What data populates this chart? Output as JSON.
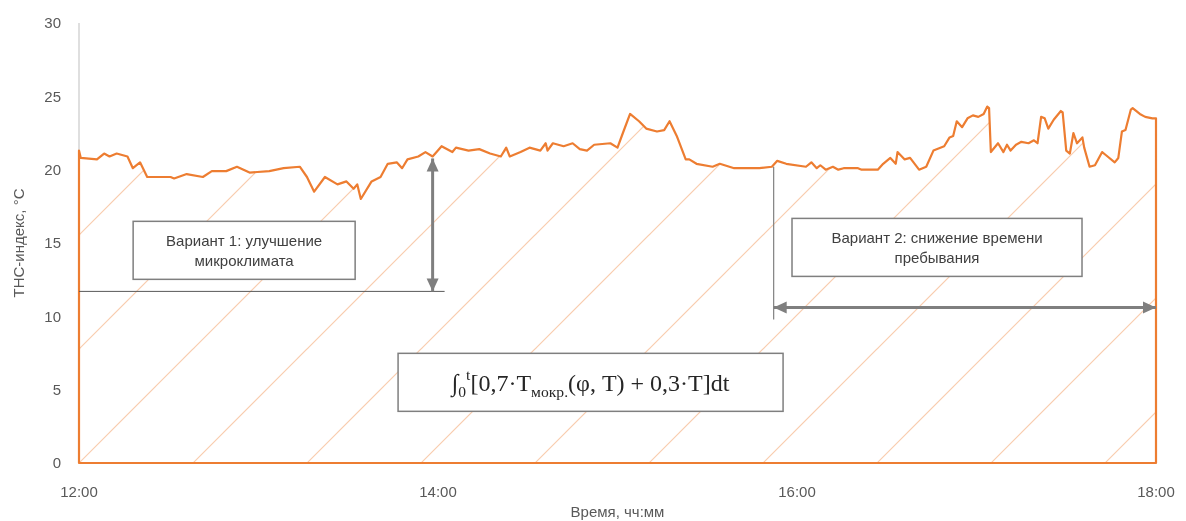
{
  "chart_data": {
    "type": "area",
    "xlabel": "Время, чч:мм",
    "ylabel": "ТНС-индекс, °C",
    "xlim": [
      12,
      18
    ],
    "ylim": [
      0,
      30
    ],
    "xticks": [
      {
        "value": 12,
        "label": "12:00"
      },
      {
        "value": 14,
        "label": "14:00"
      },
      {
        "value": 16,
        "label": "16:00"
      },
      {
        "value": 18,
        "label": "18:00"
      }
    ],
    "yticks": [
      0,
      5,
      10,
      15,
      20,
      25,
      30
    ],
    "grid": false,
    "x": [
      12,
      12.01,
      12.1,
      12.14,
      12.17,
      12.21,
      12.27,
      12.3,
      12.34,
      12.38,
      12.51,
      12.53,
      12.6,
      12.69,
      12.74,
      12.82,
      12.88,
      12.95,
      13.06,
      13.14,
      13.23,
      13.27,
      13.31,
      13.37,
      13.44,
      13.49,
      13.53,
      13.55,
      13.57,
      13.63,
      13.68,
      13.72,
      13.77,
      13.8,
      13.83,
      13.89,
      13.93,
      13.97,
      14.02,
      14.08,
      14.1,
      14.17,
      14.23,
      14.29,
      14.35,
      14.38,
      14.4,
      14.46,
      14.51,
      14.57,
      14.6,
      14.61,
      14.64,
      14.7,
      14.75,
      14.79,
      14.83,
      14.87,
      14.96,
      15,
      15.03,
      15.07,
      15.12,
      15.16,
      15.22,
      15.26,
      15.29,
      15.33,
      15.38,
      15.4,
      15.44,
      15.53,
      15.57,
      15.65,
      15.79,
      15.86,
      15.89,
      15.94,
      16.05,
      16.08,
      16.11,
      16.13,
      16.16,
      16.2,
      16.23,
      16.26,
      16.34,
      16.36,
      16.45,
      16.48,
      16.52,
      16.55,
      16.56,
      16.6,
      16.63,
      16.68,
      16.72,
      16.76,
      16.82,
      16.85,
      16.87,
      16.89,
      16.92,
      16.95,
      16.98,
      17.01,
      17.04,
      17.06,
      17.07,
      17.08,
      17.12,
      17.15,
      17.17,
      17.19,
      17.22,
      17.25,
      17.29,
      17.32,
      17.34,
      17.36,
      17.38,
      17.4,
      17.43,
      17.47,
      17.48,
      17.5,
      17.52,
      17.54,
      17.56,
      17.59,
      17.6,
      17.63,
      17.66,
      17.7,
      17.72,
      17.77,
      17.79,
      17.81,
      17.83,
      17.86,
      17.87,
      17.91,
      17.94,
      17.98,
      18
    ],
    "series": [
      {
        "color": "#ed7d31",
        "values": [
          21.3,
          20.8,
          20.7,
          21.1,
          20.9,
          21.1,
          20.9,
          20.1,
          20.5,
          19.5,
          19.5,
          19.4,
          19.7,
          19.5,
          19.9,
          19.9,
          20.2,
          19.8,
          19.9,
          20.1,
          20.2,
          19.5,
          18.5,
          19.5,
          19,
          19.2,
          18.7,
          19,
          18,
          19.2,
          19.5,
          20.4,
          20.5,
          20.1,
          20.7,
          20.9,
          21.2,
          20.9,
          21.6,
          21.2,
          21.5,
          21.3,
          21.4,
          21.1,
          20.9,
          21.5,
          20.9,
          21.2,
          21.5,
          21.3,
          21.8,
          21.3,
          21.8,
          21.6,
          21.8,
          21.4,
          21.3,
          21.7,
          21.8,
          21.5,
          22.5,
          23.8,
          23.3,
          22.8,
          22.6,
          22.7,
          23.3,
          22.3,
          20.7,
          20.7,
          20.4,
          20.2,
          20.4,
          20.1,
          20.1,
          20.2,
          20.6,
          20.4,
          20.2,
          20.5,
          20.1,
          20.3,
          20,
          20.2,
          20,
          20.1,
          20.1,
          20,
          20,
          20.4,
          20.8,
          20.4,
          21.2,
          20.7,
          20.8,
          20,
          20.2,
          21.3,
          21.6,
          22.2,
          22.3,
          23.3,
          22.9,
          23.5,
          23.7,
          23.6,
          23.8,
          24.3,
          24.2,
          21.2,
          21.8,
          21.2,
          21.7,
          21.3,
          21.7,
          21.9,
          21.8,
          22,
          21.8,
          23.6,
          23.5,
          22.8,
          23.4,
          24,
          23.9,
          21.3,
          21.1,
          22.5,
          21.8,
          22.2,
          21.5,
          20.2,
          20.3,
          21.2,
          21,
          20.5,
          20.8,
          22.6,
          22.7,
          24.1,
          24.2,
          23.8,
          23.6,
          23.5,
          23.5
        ]
      }
    ],
    "ref_lines": [
      {
        "axis": "y",
        "value": 11.7,
        "color": "#595959"
      },
      {
        "axis": "x",
        "value": 15.87,
        "color": "#808080"
      }
    ],
    "annotations": [
      "Вариант 1: улучшение\nмикроклимата",
      "Вариант 2: снижение времени\nпребывания",
      "∫$_{0}$$^{t}$[0,7·T$_{мокр.}$(φ, T) + 0,3·T]dt"
    ]
  }
}
